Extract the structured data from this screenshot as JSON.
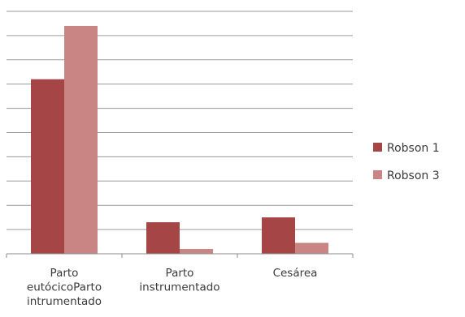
{
  "chart_data": {
    "type": "bar",
    "title": "",
    "xlabel": "",
    "ylabel": "",
    "categories": [
      [
        "Parto",
        "eutócicoParto",
        "intrumentado"
      ],
      [
        "Parto",
        "instrumentado"
      ],
      [
        "Cesárea"
      ]
    ],
    "series": [
      {
        "name": "Robson 1",
        "color": "#a54545",
        "values": [
          7.2,
          1.3,
          1.5
        ]
      },
      {
        "name": "Robson 3",
        "color": "#c98583",
        "values": [
          9.4,
          0.2,
          0.45
        ]
      }
    ],
    "ylim": [
      0,
      10
    ],
    "grid": true,
    "legend": "right"
  }
}
